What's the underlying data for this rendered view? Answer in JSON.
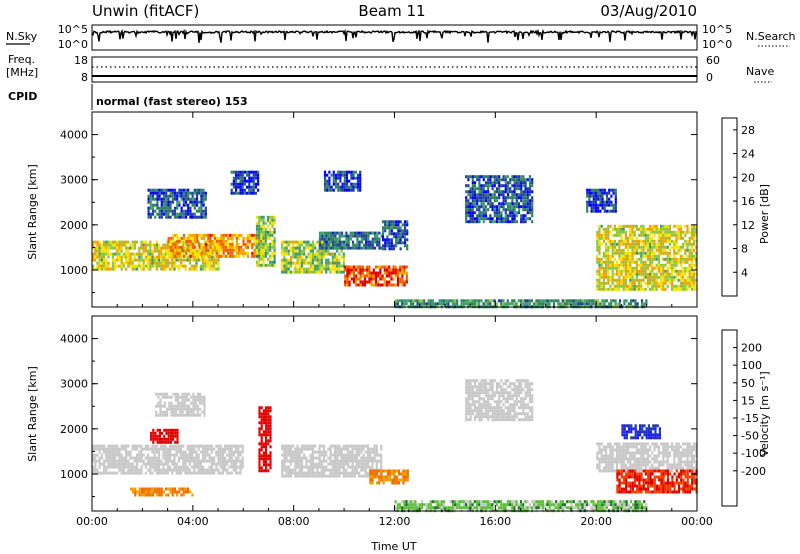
{
  "header": {
    "station": "Unwin (fitACF)",
    "beam": "Beam 11",
    "date": "03/Aug/2010"
  },
  "strip_panels": {
    "nsky_label": "N.Sky",
    "nsky_ticks": [
      "10^5",
      "10^0"
    ],
    "nsearch_label": "N.Search",
    "nsearch_ticks": [
      "10^5",
      "10^0"
    ],
    "freq_label": "Freq.",
    "freq_unit": "[MHz]",
    "freq_ticks": [
      "18",
      "8"
    ],
    "nave_label": "Nave",
    "nave_ticks": [
      "60",
      "0"
    ],
    "cpid_label": "CPID",
    "cpid_value": "normal (fast stereo) 153"
  },
  "colors": {
    "power": [
      "#0000ff",
      "#1e3ea0",
      "#2e7d5e",
      "#3a9e6a",
      "#8cc63f",
      "#f4e400",
      "#f0a000",
      "#f06000",
      "#e00000"
    ],
    "velocity": [
      "#1a1aff",
      "#1a3c9a",
      "#1f6f2e",
      "#5ebe3a",
      "#c8c8c8",
      "#c8c8c8",
      "#f0a000",
      "#f07000",
      "#f04000",
      "#e00000"
    ]
  },
  "chart_data": [
    {
      "type": "heatmap",
      "name": "power",
      "ylabel": "Slant Range [km]",
      "xlabel": "Time UT",
      "x_ticks": [
        "00:00",
        "04:00",
        "08:00",
        "12:00",
        "16:00",
        "20:00",
        "00:00"
      ],
      "x_range_hours": [
        0,
        24
      ],
      "y_ticks": [
        "1000",
        "2000",
        "3000",
        "4000"
      ],
      "y_range_km": [
        180,
        4500
      ],
      "colorbar_label": "Power [dB]",
      "colorbar_ticks": [
        "4",
        "8",
        "12",
        "16",
        "20",
        "24",
        "28"
      ],
      "colorbar_range": [
        0,
        30
      ],
      "regions": [
        {
          "t0": 0.0,
          "t1": 5.0,
          "r0": 1050,
          "r1": 1650,
          "v": 18
        },
        {
          "t0": 3.0,
          "t1": 6.8,
          "r0": 1300,
          "r1": 1800,
          "v": 22
        },
        {
          "t0": 2.2,
          "t1": 4.5,
          "r0": 2200,
          "r1": 2800,
          "v": 6
        },
        {
          "t0": 5.5,
          "t1": 6.6,
          "r0": 2700,
          "r1": 3200,
          "v": 4
        },
        {
          "t0": 6.5,
          "t1": 7.2,
          "r0": 1100,
          "r1": 2200,
          "v": 14
        },
        {
          "t0": 7.5,
          "t1": 10.0,
          "r0": 950,
          "r1": 1650,
          "v": 16
        },
        {
          "t0": 10.0,
          "t1": 12.5,
          "r0": 650,
          "r1": 1100,
          "v": 26
        },
        {
          "t0": 9.0,
          "t1": 11.5,
          "r0": 1500,
          "r1": 1850,
          "v": 8
        },
        {
          "t0": 9.2,
          "t1": 10.6,
          "r0": 2800,
          "r1": 3200,
          "v": 5
        },
        {
          "t0": 11.5,
          "t1": 12.5,
          "r0": 1500,
          "r1": 2100,
          "v": 6
        },
        {
          "t0": 14.8,
          "t1": 17.5,
          "r0": 2100,
          "r1": 3100,
          "v": 6
        },
        {
          "t0": 20.0,
          "t1": 24.0,
          "r0": 600,
          "r1": 2000,
          "v": 18
        },
        {
          "t0": 19.6,
          "t1": 20.8,
          "r0": 2300,
          "r1": 2800,
          "v": 5
        },
        {
          "t0": 12.0,
          "t1": 22.0,
          "r0": 200,
          "r1": 350,
          "v": 10
        }
      ]
    },
    {
      "type": "heatmap",
      "name": "velocity",
      "ylabel": "Slant Range [km]",
      "xlabel": "Time UT",
      "x_ticks": [
        "00:00",
        "04:00",
        "08:00",
        "12:00",
        "16:00",
        "20:00",
        "00:00"
      ],
      "x_range_hours": [
        0,
        24
      ],
      "y_ticks": [
        "1000",
        "2000",
        "3000",
        "4000"
      ],
      "y_range_km": [
        180,
        4500
      ],
      "colorbar_label": "Velocity [m s⁻¹]",
      "colorbar_ticks": [
        "200",
        "100",
        "50",
        "15",
        "-15",
        "-50",
        "-100",
        "-200"
      ],
      "regions": [
        {
          "t0": 0.0,
          "t1": 6.0,
          "r0": 1050,
          "r1": 1650,
          "v": 0
        },
        {
          "t0": 2.5,
          "t1": 4.5,
          "r0": 2300,
          "r1": 2800,
          "v": 0
        },
        {
          "t0": 2.3,
          "t1": 3.4,
          "r0": 1700,
          "r1": 2000,
          "v": -180
        },
        {
          "t0": 6.6,
          "t1": 7.1,
          "r0": 1100,
          "r1": 2500,
          "v": -200
        },
        {
          "t0": 7.5,
          "t1": 11.5,
          "r0": 950,
          "r1": 1650,
          "v": 0
        },
        {
          "t0": 11.0,
          "t1": 12.5,
          "r0": 800,
          "r1": 1100,
          "v": -60
        },
        {
          "t0": 14.8,
          "t1": 17.5,
          "r0": 2200,
          "r1": 3100,
          "v": 0
        },
        {
          "t0": 20.0,
          "t1": 24.0,
          "r0": 1100,
          "r1": 1700,
          "v": 0
        },
        {
          "t0": 20.8,
          "t1": 24.0,
          "r0": 600,
          "r1": 1100,
          "v": -150
        },
        {
          "t0": 21.0,
          "t1": 22.5,
          "r0": 1800,
          "r1": 2100,
          "v": 150
        },
        {
          "t0": 12.0,
          "t1": 22.0,
          "r0": 200,
          "r1": 420,
          "v": 30
        },
        {
          "t0": 1.5,
          "t1": 4.0,
          "r0": 550,
          "r1": 700,
          "v": -60
        }
      ]
    }
  ]
}
